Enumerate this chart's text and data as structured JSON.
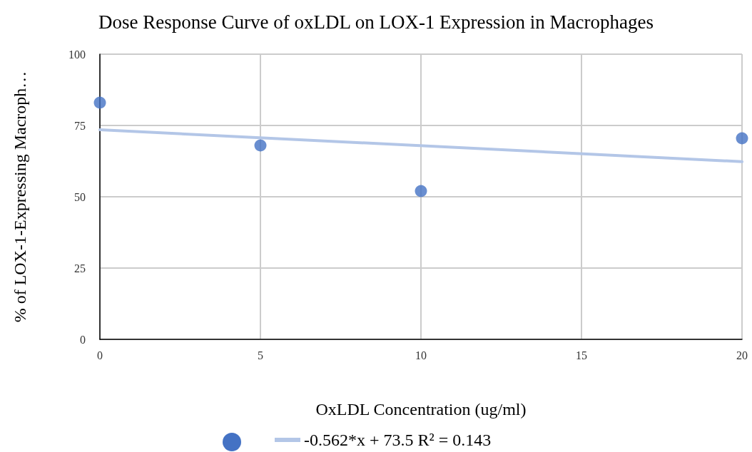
{
  "chart_data": {
    "type": "scatter",
    "title": "Dose Response Curve of oxLDL on LOX-1 Expression in Macrophages",
    "xlabel": "OxLDL Concentration (ug/ml)",
    "ylabel": "% of LOX-1-Expressing Macroph…",
    "xlim": [
      0,
      20
    ],
    "xticks": [
      0,
      5,
      10,
      15,
      20
    ],
    "ylim": [
      0,
      100
    ],
    "yticks": [
      0,
      25,
      50,
      75,
      100
    ],
    "grid": true,
    "legend": "bottom",
    "series": [
      {
        "marker": "circle",
        "color": "#4472c4",
        "x": [
          0,
          5,
          10,
          20
        ],
        "values": [
          83,
          68,
          52,
          70.5
        ]
      },
      {
        "type": "line",
        "marker": "none",
        "name": "-0.562*x + 73.5 R² = 0.143",
        "color": "#b3c6e7",
        "line_style": "solid",
        "x": [
          0,
          20
        ],
        "values": [
          73.5,
          62.3
        ]
      }
    ]
  }
}
